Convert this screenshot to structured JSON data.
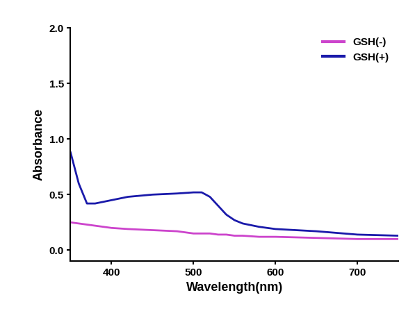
{
  "chart_data": {
    "type": "line",
    "x_label": "Wavelength(nm)",
    "y_label": "Absorbance",
    "x": [
      350,
      360,
      370,
      380,
      400,
      420,
      450,
      480,
      500,
      510,
      520,
      530,
      540,
      550,
      560,
      580,
      600,
      650,
      700,
      750
    ],
    "series": [
      {
        "name": "GSH(-)",
        "color": "#cc44cc",
        "values": [
          0.25,
          0.24,
          0.23,
          0.22,
          0.2,
          0.19,
          0.18,
          0.17,
          0.15,
          0.15,
          0.15,
          0.14,
          0.14,
          0.13,
          0.13,
          0.12,
          0.12,
          0.11,
          0.1,
          0.1
        ]
      },
      {
        "name": "GSH(+)",
        "color": "#1a1aaa",
        "values": [
          0.88,
          0.6,
          0.42,
          0.42,
          0.45,
          0.48,
          0.5,
          0.51,
          0.52,
          0.52,
          0.48,
          0.4,
          0.32,
          0.27,
          0.24,
          0.21,
          0.19,
          0.17,
          0.14,
          0.13
        ]
      }
    ],
    "xlim": [
      350,
      750
    ],
    "xticks": [
      400,
      500,
      600,
      700
    ],
    "ylim": [
      -0.1,
      2.0
    ],
    "yticks": [
      {
        "value": 0.0,
        "label": "0.0"
      },
      {
        "value": 0.5,
        "label": "0.5"
      },
      {
        "value": 1.0,
        "label": "1.0"
      },
      {
        "value": 1.5,
        "label": "1.5"
      },
      {
        "value": 2.0,
        "label": "2.0"
      }
    ],
    "legend": "upper right",
    "grid": false
  }
}
